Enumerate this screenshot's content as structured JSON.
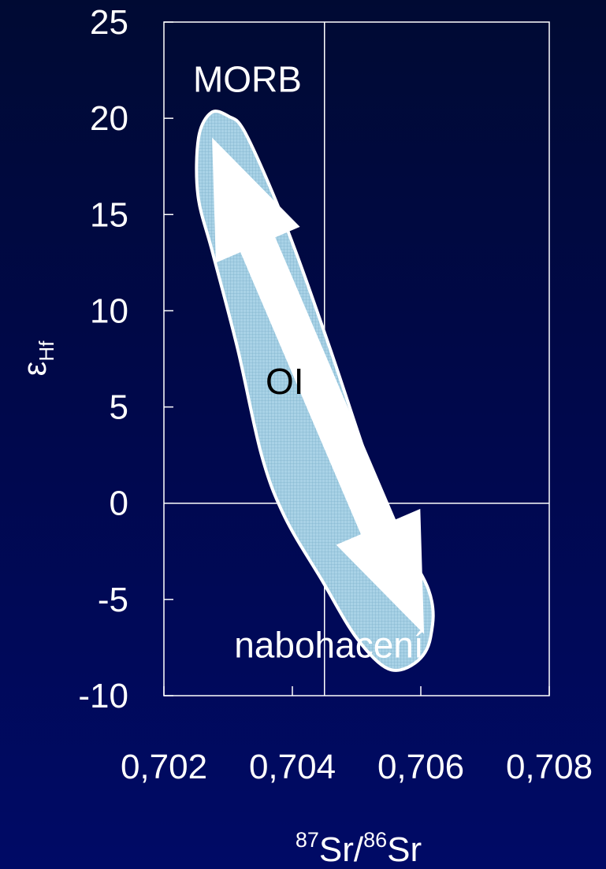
{
  "chart_data": {
    "type": "scatter",
    "xlabel": {
      "sup1": "87",
      "base1": "Sr/",
      "sup2": "86",
      "base2": "Sr"
    },
    "ylabel": {
      "symbol": "ε",
      "subscript": "Hf"
    },
    "xlim": [
      0.702,
      0.708
    ],
    "ylim": [
      -10,
      25
    ],
    "x_ticks": [
      {
        "value": 0.702,
        "label": "0,702"
      },
      {
        "value": 0.704,
        "label": "0,704"
      },
      {
        "value": 0.706,
        "label": "0,706"
      },
      {
        "value": 0.708,
        "label": "0,708"
      }
    ],
    "y_ticks": [
      {
        "value": 25,
        "label": "25"
      },
      {
        "value": 20,
        "label": "20"
      },
      {
        "value": 15,
        "label": "15"
      },
      {
        "value": 10,
        "label": "10"
      },
      {
        "value": 5,
        "label": "5"
      },
      {
        "value": 0,
        "label": "0"
      },
      {
        "value": -5,
        "label": "-5"
      },
      {
        "value": -10,
        "label": "-10"
      }
    ],
    "reference_lines": {
      "x": 0.7045,
      "y": 0
    },
    "field": {
      "name": "OI",
      "fill": "#9ec9e0",
      "stroke": "#ffffff",
      "outline": [
        [
          0.70274,
          20.3
        ],
        [
          0.70301,
          20.1
        ],
        [
          0.70324,
          19.4
        ],
        [
          0.70367,
          16.3
        ],
        [
          0.70406,
          13.0
        ],
        [
          0.70459,
          8.0
        ],
        [
          0.70506,
          3.3
        ],
        [
          0.70545,
          -0.5
        ],
        [
          0.70612,
          -4.5
        ],
        [
          0.70615,
          -7.0
        ],
        [
          0.70591,
          -8.3
        ],
        [
          0.70549,
          -8.6
        ],
        [
          0.705,
          -7.0
        ],
        [
          0.70446,
          -4.0
        ],
        [
          0.70388,
          -0.7
        ],
        [
          0.70352,
          2.5
        ],
        [
          0.70315,
          8.0
        ],
        [
          0.70276,
          13.0
        ],
        [
          0.70253,
          16.0
        ],
        [
          0.70254,
          19.0
        ],
        [
          0.70274,
          20.3
        ]
      ]
    },
    "trend_arrow": {
      "from": [
        0.70275,
        19.0
      ],
      "to": [
        0.70605,
        -6.8
      ],
      "double_headed": true,
      "color": "#ffffff"
    },
    "annotations": [
      {
        "id": "morb",
        "text": "MORB",
        "x": 0.7033,
        "y": 22.0,
        "color": "#ffffff"
      },
      {
        "id": "oi",
        "text": "OI",
        "x": 0.70388,
        "y": 6.3,
        "color": "#000000"
      },
      {
        "id": "enriched",
        "text": "nabohacení",
        "x": 0.70457,
        "y": -7.4,
        "color": "#ffffff"
      }
    ],
    "grid": false,
    "legend": "none"
  }
}
